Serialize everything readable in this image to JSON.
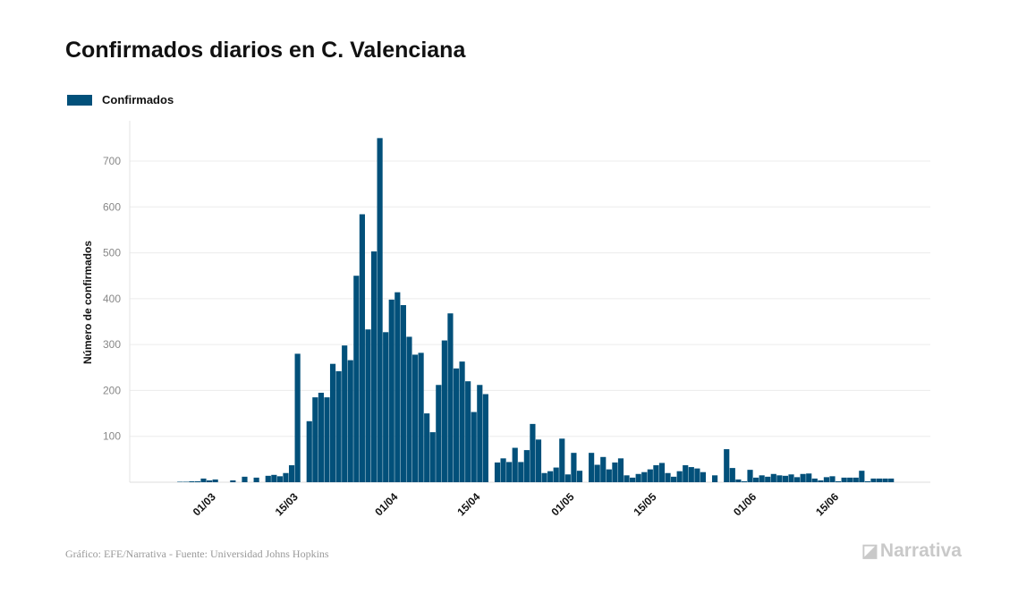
{
  "title": "Confirmados diarios en C. Valenciana",
  "source": "Gráfico: EFE/Narrativa - Fuente: Universidad Johns Hopkins",
  "brand": "Narrativa",
  "colors": {
    "bar": "#02507a",
    "grid": "#ececec"
  },
  "chart_data": {
    "type": "bar",
    "title": "Confirmados diarios en C. Valenciana",
    "ylabel": "Número de confirmados",
    "xlabel": "",
    "legend": [
      {
        "name": "Confirmados",
        "position": "top-left"
      }
    ],
    "ylim": [
      0,
      780
    ],
    "yticks": [
      0,
      100,
      200,
      300,
      400,
      500,
      600,
      700
    ],
    "start_date": "2020-02-24",
    "xticks": [
      {
        "label": "01/03",
        "index": 6
      },
      {
        "label": "15/03",
        "index": 20
      },
      {
        "label": "01/04",
        "index": 37
      },
      {
        "label": "15/04",
        "index": 51
      },
      {
        "label": "01/05",
        "index": 67
      },
      {
        "label": "15/05",
        "index": 81
      },
      {
        "label": "01/06",
        "index": 98
      },
      {
        "label": "15/06",
        "index": 112
      }
    ],
    "series": [
      {
        "name": "Confirmados",
        "values": [
          0,
          0,
          1,
          1,
          2,
          2,
          8,
          4,
          6,
          0,
          0,
          4,
          0,
          12,
          0,
          10,
          0,
          14,
          16,
          13,
          20,
          37,
          280,
          0,
          133,
          185,
          195,
          185,
          258,
          242,
          298,
          266,
          450,
          584,
          333,
          503,
          750,
          327,
          398,
          414,
          386,
          317,
          278,
          282,
          150,
          109,
          212,
          309,
          368,
          248,
          263,
          220,
          153,
          212,
          192,
          0,
          43,
          52,
          44,
          75,
          44,
          70,
          127,
          93,
          20,
          24,
          32,
          95,
          17,
          64,
          25,
          0,
          64,
          38,
          55,
          28,
          43,
          52,
          15,
          10,
          18,
          22,
          28,
          37,
          42,
          20,
          12,
          24,
          37,
          33,
          30,
          22,
          0,
          15,
          0,
          72,
          31,
          6,
          2,
          27,
          10,
          15,
          12,
          18,
          15,
          14,
          17,
          11,
          18,
          19,
          8,
          4,
          11,
          13,
          2,
          10,
          10,
          10,
          25,
          2,
          8,
          8,
          8,
          8
        ]
      }
    ]
  }
}
